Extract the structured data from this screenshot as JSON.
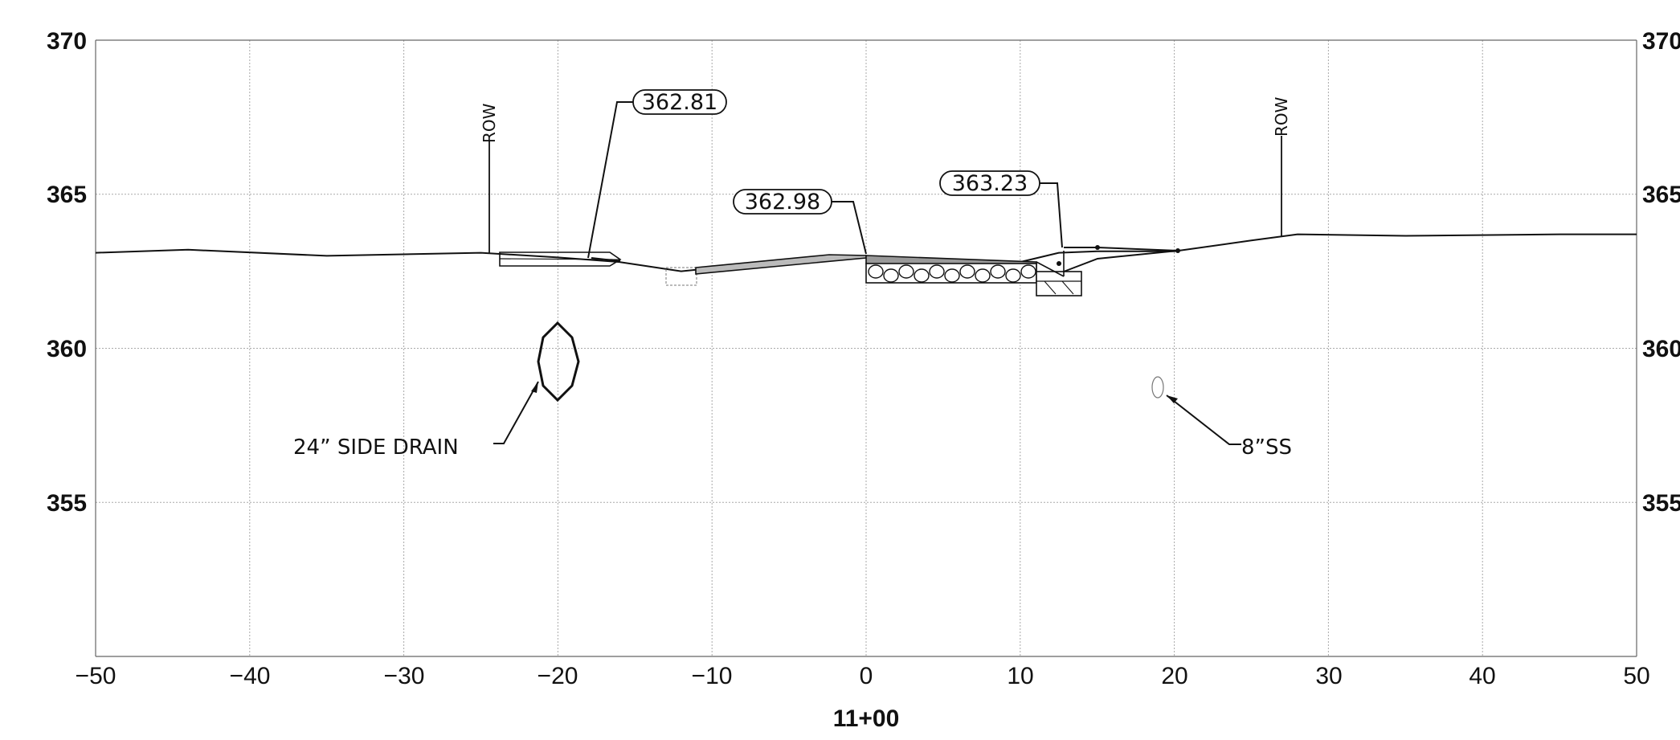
{
  "x_ticks": [
    "−50",
    "−40",
    "−30",
    "−20",
    "−10",
    "0",
    "10",
    "20",
    "30",
    "40",
    "50"
  ],
  "y_ticks_left": [
    "370",
    "365",
    "360",
    "355"
  ],
  "y_ticks_right": [
    "370",
    "365",
    "360",
    "355"
  ],
  "station": "11+00",
  "callouts": {
    "c1": "362.81",
    "c2": "362.98",
    "c3": "363.23"
  },
  "row_left": "ROW",
  "row_right": "ROW",
  "side_drain_label": "24” SIDE DRAIN",
  "sewer_label": "8”SS",
  "chart_data": {
    "type": "line",
    "x_range": [
      -50,
      50
    ],
    "y_range": [
      350,
      370
    ],
    "grid": true,
    "series": [
      {
        "x": [
          -50,
          -44,
          -35,
          -30,
          -25,
          -20,
          -16,
          -12,
          -10,
          0,
          5,
          10,
          12.5,
          15,
          20,
          25,
          28,
          35,
          45,
          50
        ],
        "y": [
          363.1,
          363.2,
          363.0,
          363.05,
          363.1,
          362.95,
          362.8,
          362.5,
          362.6,
          362.95,
          362.9,
          362.8,
          363.1,
          363.15,
          363.15,
          363.5,
          363.7,
          363.65,
          363.7,
          363.7
        ]
      }
    ]
  }
}
